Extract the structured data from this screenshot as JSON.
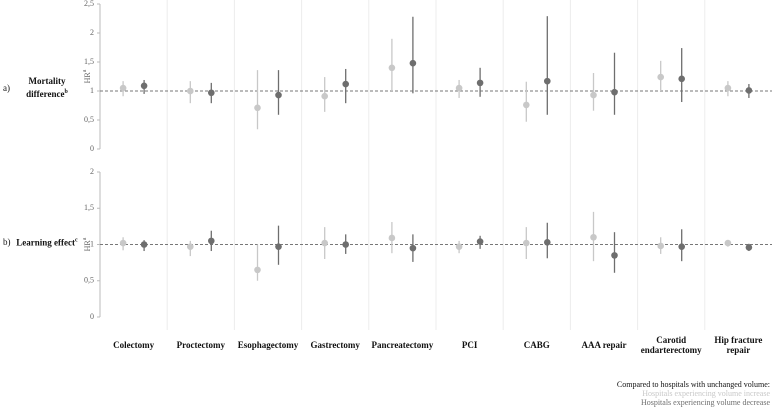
{
  "chart_data": {
    "type": "errorbar",
    "categories": [
      "Colectomy",
      "Proctectomy",
      "Esophagectomy",
      "Gastrectomy",
      "Pancreatectomy",
      "PCI",
      "CABG",
      "AAA repair",
      "Carotid endarterectomy",
      "Hip fracture repair"
    ],
    "legend": {
      "title": "Compared to hospitals with unchanged volume:",
      "entries": [
        {
          "name": "Hospitals experiencing volume increase",
          "color": "#c8c8c8"
        },
        {
          "name": "Hospitals experiencing volume decrease",
          "color": "#6e6e6e"
        }
      ]
    },
    "panels": [
      {
        "label": "a)",
        "ylabel": "Mortality difference",
        "ylabel_sup": "b",
        "yaxis_title": "HR",
        "yaxis_title_sup": "a",
        "ylim": [
          0,
          2.5
        ],
        "yticks": [
          {
            "value": 0,
            "label": "0"
          },
          {
            "value": 0.5,
            "label": "0,5"
          },
          {
            "value": 1,
            "label": "1"
          },
          {
            "value": 1.5,
            "label": "1,5"
          },
          {
            "value": 2,
            "label": "2"
          },
          {
            "value": 2.5,
            "label": "2,5"
          }
        ],
        "reference": 1,
        "series": [
          {
            "values": [
              1.05,
              1.0,
              0.71,
              0.91,
              1.4,
              1.05,
              0.76,
              0.93,
              1.24,
              1.05
            ],
            "lower": [
              0.91,
              0.79,
              0.34,
              0.64,
              1.0,
              0.88,
              0.47,
              0.66,
              1.0,
              0.91
            ],
            "upper": [
              1.17,
              1.17,
              1.36,
              1.24,
              1.9,
              1.19,
              1.16,
              1.31,
              1.52,
              1.17
            ]
          },
          {
            "values": [
              1.09,
              0.97,
              0.93,
              1.12,
              1.48,
              1.14,
              1.17,
              0.98,
              1.21,
              1.01
            ],
            "lower": [
              0.95,
              0.79,
              0.59,
              0.79,
              0.96,
              0.9,
              0.59,
              0.59,
              0.81,
              0.88
            ],
            "upper": [
              1.19,
              1.14,
              1.36,
              1.38,
              2.28,
              1.4,
              2.29,
              1.66,
              1.74,
              1.12
            ]
          }
        ]
      },
      {
        "label": "b)",
        "ylabel": "Learning effect",
        "ylabel_sup": "c",
        "yaxis_title": "HR",
        "yaxis_title_sup": "a",
        "ylim": [
          0,
          2
        ],
        "yticks": [
          {
            "value": 0,
            "label": "0"
          },
          {
            "value": 0.5,
            "label": "0,5"
          },
          {
            "value": 1,
            "label": "1"
          },
          {
            "value": 1.5,
            "label": "1,5"
          },
          {
            "value": 2,
            "label": "2"
          }
        ],
        "reference": 1,
        "series": [
          {
            "values": [
              1.02,
              0.97,
              0.65,
              1.02,
              1.09,
              0.97,
              1.02,
              1.1,
              0.98,
              1.02
            ],
            "lower": [
              0.92,
              0.84,
              0.5,
              0.8,
              0.88,
              0.88,
              0.8,
              0.77,
              0.87,
              0.97
            ],
            "upper": [
              1.1,
              1.05,
              1.0,
              1.24,
              1.31,
              1.05,
              1.24,
              1.45,
              1.1,
              1.06
            ]
          },
          {
            "values": [
              1.0,
              1.05,
              0.97,
              1.0,
              0.95,
              1.04,
              1.03,
              0.85,
              0.97,
              0.96
            ],
            "lower": [
              0.91,
              0.91,
              0.72,
              0.87,
              0.76,
              0.94,
              0.81,
              0.61,
              0.77,
              0.91
            ],
            "upper": [
              1.06,
              1.19,
              1.26,
              1.14,
              1.14,
              1.12,
              1.3,
              1.17,
              1.21,
              1.01
            ]
          }
        ]
      }
    ]
  }
}
